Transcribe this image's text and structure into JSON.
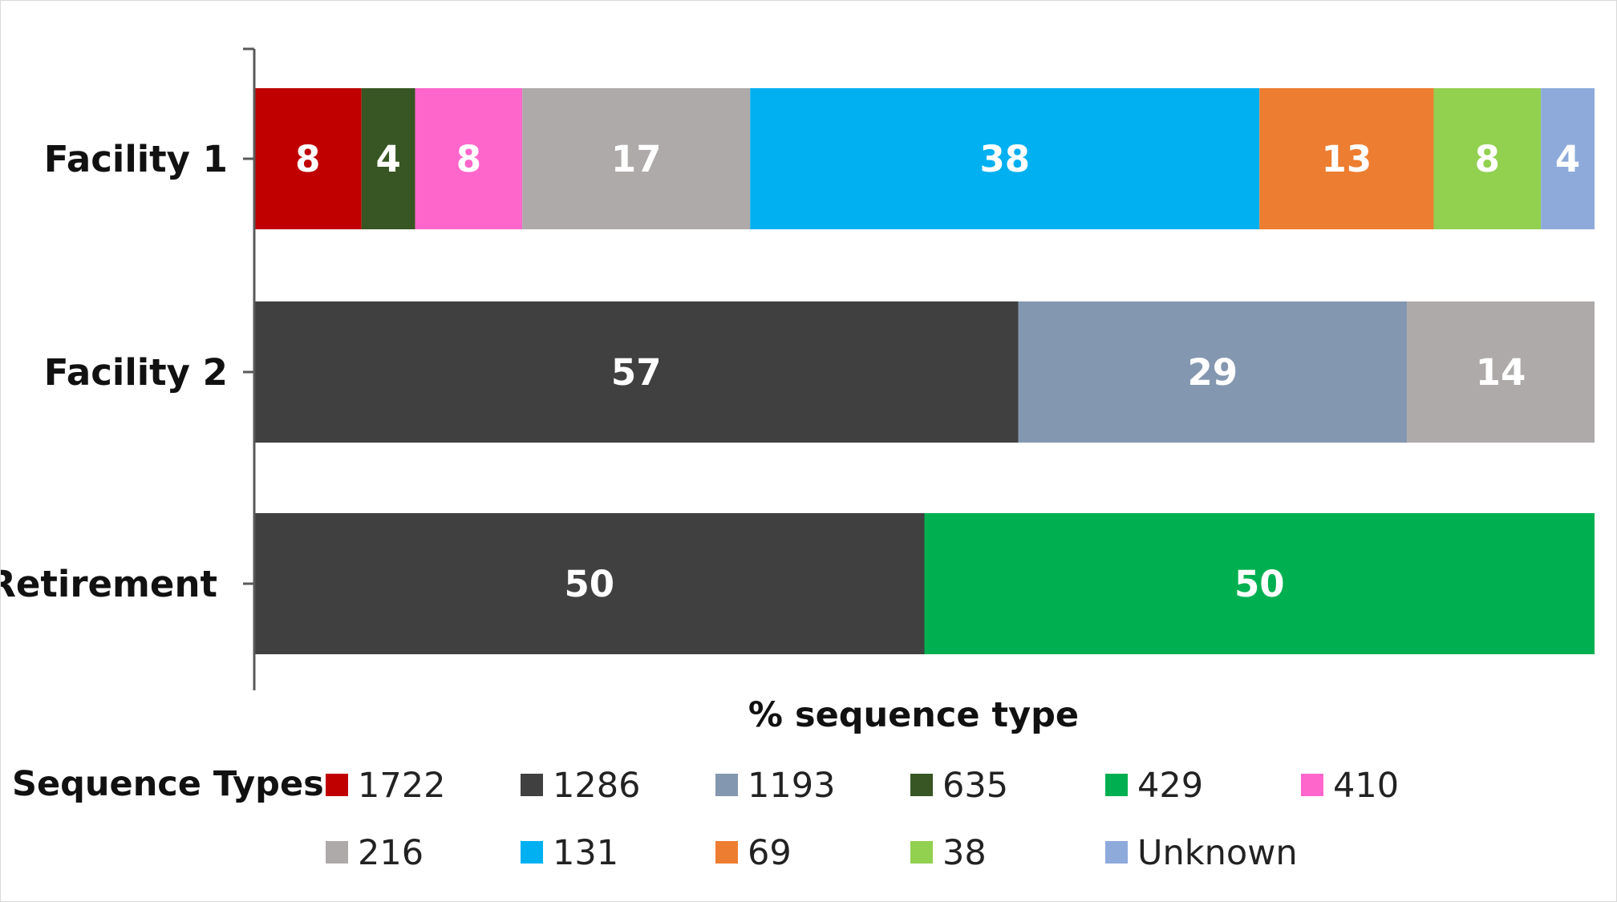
{
  "chart_data": {
    "type": "bar",
    "orientation": "horizontal",
    "stacked": true,
    "title": "",
    "xlabel": "% sequence type",
    "ylabel": "",
    "xlim": [
      0,
      100
    ],
    "grid": false,
    "legend_placement": "bottom",
    "legend_title": "Sequence Types:",
    "categories": [
      "Facility 1",
      "Facility 2",
      "Retirement"
    ],
    "series": [
      {
        "name": "1722",
        "color": "#c00000",
        "values": [
          8,
          0,
          0
        ]
      },
      {
        "name": "1286",
        "color": "#404040",
        "values": [
          0,
          57,
          50
        ]
      },
      {
        "name": "1193",
        "color": "#8497b0",
        "values": [
          0,
          29,
          0
        ]
      },
      {
        "name": "635",
        "color": "#375623",
        "values": [
          4,
          0,
          0
        ]
      },
      {
        "name": "429",
        "color": "#00b050",
        "values": [
          0,
          0,
          50
        ]
      },
      {
        "name": "410",
        "color": "#ff66cc",
        "values": [
          8,
          0,
          0
        ]
      },
      {
        "name": "216",
        "color": "#aeaaaa",
        "values": [
          17,
          14,
          0
        ]
      },
      {
        "name": "131",
        "color": "#00b0f0",
        "values": [
          38,
          0,
          0
        ]
      },
      {
        "name": "69",
        "color": "#ed7d31",
        "values": [
          13,
          0,
          0
        ]
      },
      {
        "name": "38",
        "color": "#92d050",
        "values": [
          8,
          0,
          0
        ]
      },
      {
        "name": "Unknown",
        "color": "#8eaadb",
        "values": [
          4,
          0,
          0
        ]
      }
    ],
    "stack_order": [
      [
        "1722",
        "635",
        "410",
        "216",
        "131",
        "69",
        "38",
        "Unknown"
      ],
      [
        "1286",
        "1193",
        "216"
      ],
      [
        "1286",
        "429"
      ]
    ]
  }
}
